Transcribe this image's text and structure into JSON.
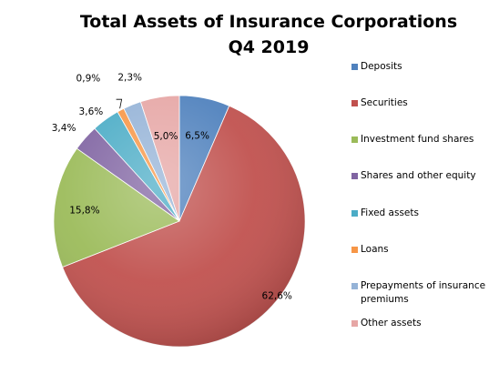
{
  "chart_data": {
    "type": "pie",
    "title": "Total Assets of Insurance Corporations",
    "subtitle": "Q4 2019",
    "legend_position": "right",
    "decimal_separator": ",",
    "unit": "%",
    "slices": [
      {
        "label": "Deposits",
        "value": 6.5,
        "display": "6,5%",
        "color": "#4F81BD"
      },
      {
        "label": "Securities",
        "value": 62.6,
        "display": "62,6%",
        "color": "#C0504D"
      },
      {
        "label": "Investment fund shares",
        "value": 15.8,
        "display": "15,8%",
        "color": "#9BBB59"
      },
      {
        "label": "Shares and other equity",
        "value": 3.4,
        "display": "3,4%",
        "color": "#8064A2"
      },
      {
        "label": "Fixed assets",
        "value": 3.6,
        "display": "3,6%",
        "color": "#4BACC6"
      },
      {
        "label": "Loans",
        "value": 0.9,
        "display": "0,9%",
        "color": "#F79646"
      },
      {
        "label": "Prepayments of insurance premiums",
        "value": 2.3,
        "display": "2,3%",
        "color": "#95B3D7"
      },
      {
        "label": "Other assets",
        "value": 5.0,
        "display": "5,0%",
        "color": "#E6A6A5"
      }
    ]
  },
  "legend": {
    "items": [
      {
        "label": "Deposits",
        "color": "#4F81BD"
      },
      {
        "label": "Securities",
        "color": "#C0504D"
      },
      {
        "label": "Investment fund shares",
        "color": "#9BBB59"
      },
      {
        "label": "Shares and other equity",
        "color": "#8064A2"
      },
      {
        "label": "Fixed assets",
        "color": "#4BACC6"
      },
      {
        "label": "Loans",
        "color": "#F79646"
      },
      {
        "label": "Prepayments of insurance premiums",
        "color": "#95B3D7"
      },
      {
        "label": "Other assets",
        "color": "#E6A6A5"
      }
    ]
  }
}
